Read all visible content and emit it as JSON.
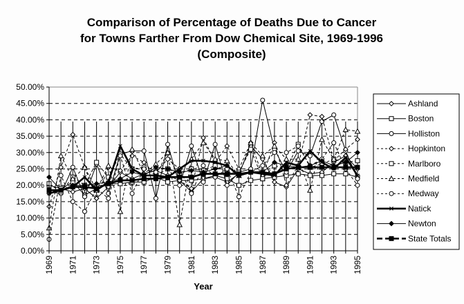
{
  "chart_data": {
    "type": "line",
    "title": [
      "Comparison of Percentage of Deaths Due to Cancer",
      "for Towns Farther From Dow Chemical Site, 1969-1996",
      "(Composite)"
    ],
    "xlabel": "Year",
    "ylabel": "",
    "ylim": [
      0,
      0.5
    ],
    "yticks": [
      "0.00%",
      "5.00%",
      "10.00%",
      "15.00%",
      "20.00%",
      "25.00%",
      "30.00%",
      "35.00%",
      "40.00%",
      "45.00%",
      "50.00%"
    ],
    "x": [
      1969,
      1970,
      1971,
      1972,
      1973,
      1974,
      1975,
      1976,
      1977,
      1978,
      1979,
      1980,
      1981,
      1982,
      1983,
      1984,
      1985,
      1986,
      1987,
      1988,
      1989,
      1990,
      1991,
      1992,
      1993,
      1994,
      1995
    ],
    "xtick_labels": [
      "1969",
      "1971",
      "1973",
      "1975",
      "1977",
      "1979",
      "1981",
      "1983",
      "1985",
      "1987",
      "1989",
      "1991",
      "1993",
      "1995"
    ],
    "grid": "horizontal-dashed",
    "legend": "right",
    "series": [
      {
        "name": "Ashland",
        "style": "solid",
        "marker": "diamond-open",
        "values": [
          0.175,
          0.19,
          0.18,
          0.19,
          0.16,
          0.195,
          0.24,
          0.22,
          0.235,
          0.245,
          0.23,
          0.215,
          0.18,
          0.22,
          0.225,
          0.21,
          0.235,
          0.32,
          0.28,
          0.21,
          0.195,
          0.25,
          0.235,
          0.24,
          0.27,
          0.29,
          0.25
        ]
      },
      {
        "name": "Boston",
        "style": "solid",
        "marker": "square-open",
        "values": [
          0.2,
          0.19,
          0.21,
          0.17,
          0.19,
          0.205,
          0.205,
          0.21,
          0.21,
          0.225,
          0.21,
          0.215,
          0.215,
          0.22,
          0.23,
          0.22,
          0.2,
          0.215,
          0.22,
          0.225,
          0.23,
          0.235,
          0.23,
          0.23,
          0.235,
          0.235,
          0.225
        ]
      },
      {
        "name": "Holliston",
        "style": "solid",
        "marker": "circle-open",
        "values": [
          0.18,
          0.175,
          0.255,
          0.165,
          0.265,
          0.175,
          0.295,
          0.305,
          0.305,
          0.16,
          0.325,
          0.2,
          0.32,
          0.21,
          0.325,
          0.2,
          0.24,
          0.25,
          0.46,
          0.31,
          0.24,
          0.305,
          0.29,
          0.395,
          0.415,
          0.305,
          0.22
        ]
      },
      {
        "name": "Hopkinton",
        "style": "dashed",
        "marker": "diamond-open",
        "values": [
          0.135,
          0.255,
          0.355,
          0.255,
          0.16,
          0.255,
          0.245,
          0.29,
          0.27,
          0.23,
          0.3,
          0.215,
          0.19,
          0.345,
          0.27,
          0.32,
          0.25,
          0.33,
          0.23,
          0.33,
          0.2,
          0.26,
          0.415,
          0.41,
          0.275,
          0.31,
          0.34
        ]
      },
      {
        "name": "Marlboro",
        "style": "dashed",
        "marker": "square-open",
        "values": [
          0.205,
          0.18,
          0.225,
          0.2,
          0.27,
          0.225,
          0.295,
          0.25,
          0.255,
          0.23,
          0.25,
          0.235,
          0.25,
          0.245,
          0.26,
          0.24,
          0.24,
          0.31,
          0.22,
          0.26,
          0.25,
          0.325,
          0.255,
          0.265,
          0.28,
          0.27,
          0.275
        ]
      },
      {
        "name": "Medfield",
        "style": "dashed",
        "marker": "triangle-open",
        "values": [
          0.07,
          0.29,
          0.22,
          0.255,
          0.185,
          0.26,
          0.12,
          0.31,
          0.235,
          0.265,
          0.3,
          0.08,
          0.28,
          0.33,
          0.28,
          0.275,
          0.23,
          0.33,
          0.29,
          0.32,
          0.28,
          0.28,
          0.185,
          0.34,
          0.28,
          0.37,
          0.365
        ]
      },
      {
        "name": "Medway",
        "style": "dashed",
        "marker": "circle-open",
        "values": [
          0.035,
          0.23,
          0.15,
          0.12,
          0.19,
          0.16,
          0.29,
          0.175,
          0.25,
          0.24,
          0.28,
          0.25,
          0.175,
          0.26,
          0.225,
          0.25,
          0.165,
          0.24,
          0.26,
          0.3,
          0.3,
          0.32,
          0.26,
          0.28,
          0.33,
          0.25,
          0.2
        ]
      },
      {
        "name": "Natick",
        "style": "bold",
        "marker": "x",
        "values": [
          0.175,
          0.185,
          0.195,
          0.225,
          0.185,
          0.21,
          0.32,
          0.25,
          0.23,
          0.23,
          0.225,
          0.25,
          0.275,
          0.275,
          0.27,
          0.26,
          0.23,
          0.24,
          0.235,
          0.23,
          0.27,
          0.26,
          0.305,
          0.27,
          0.25,
          0.285,
          0.23
        ]
      },
      {
        "name": "Newton",
        "style": "solid",
        "marker": "diamond-filled",
        "values": [
          0.225,
          0.185,
          0.2,
          0.2,
          0.205,
          0.21,
          0.22,
          0.24,
          0.23,
          0.255,
          0.25,
          0.24,
          0.245,
          0.24,
          0.25,
          0.26,
          0.23,
          0.24,
          0.24,
          0.27,
          0.26,
          0.255,
          0.26,
          0.275,
          0.26,
          0.27,
          0.3
        ]
      },
      {
        "name": "State Totals",
        "style": "bold-dashed",
        "marker": "square-filled",
        "values": [
          0.185,
          0.185,
          0.195,
          0.195,
          0.19,
          0.205,
          0.215,
          0.215,
          0.22,
          0.22,
          0.225,
          0.225,
          0.225,
          0.235,
          0.235,
          0.235,
          0.235,
          0.24,
          0.24,
          0.235,
          0.25,
          0.255,
          0.255,
          0.255,
          0.255,
          0.255,
          0.255
        ]
      }
    ]
  }
}
